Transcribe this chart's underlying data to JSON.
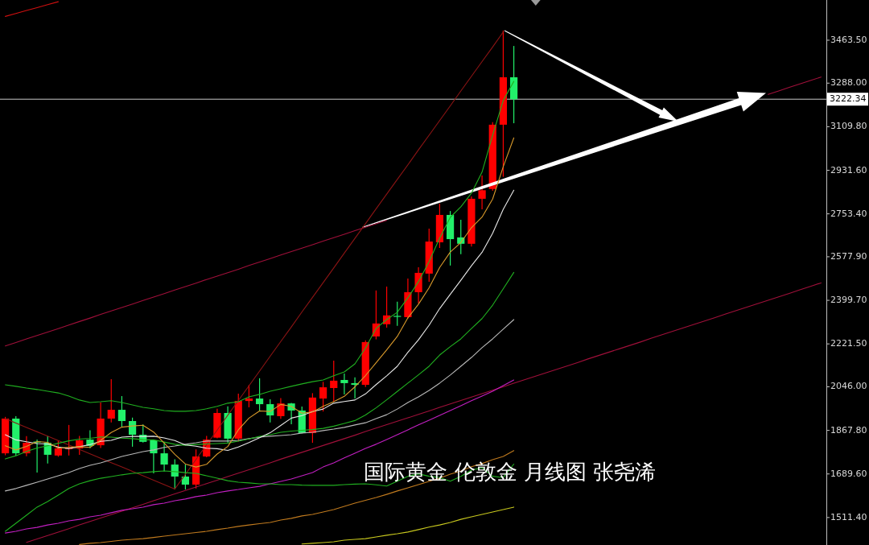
{
  "chart_data": {
    "type": "candlestick",
    "title": "国际黄金 伦敦金 月线图 张尧浠",
    "categories": [
      null,
      null,
      null,
      null,
      null,
      null,
      null,
      null,
      null,
      null,
      null,
      null,
      null,
      null,
      null,
      null,
      null,
      null,
      null,
      null,
      null,
      null,
      null,
      null,
      null,
      null,
      null,
      null,
      null,
      null,
      null,
      null,
      null,
      null,
      null,
      null,
      null,
      null,
      null,
      null,
      null,
      null,
      null,
      null,
      null,
      null,
      null,
      null,
      null,
      null,
      null,
      null,
      null,
      null,
      null,
      null,
      null,
      null,
      null,
      null,
      null,
      null,
      null,
      null,
      null,
      null,
      null,
      null,
      null,
      null,
      null,
      null,
      null,
      null,
      null,
      null,
      null,
      null
    ],
    "ohlc": [
      [
        1774,
        1923,
        1766,
        1916
      ],
      [
        1916,
        1926,
        1764,
        1774
      ],
      [
        1774,
        1844,
        1762,
        1817
      ],
      [
        1822,
        1830,
        1695,
        1820
      ],
      [
        1817,
        1844,
        1732,
        1768
      ],
      [
        1765,
        1826,
        1760,
        1794
      ],
      [
        1792,
        1890,
        1765,
        1795
      ],
      [
        1794,
        1845,
        1768,
        1827
      ],
      [
        1830,
        1868,
        1795,
        1804
      ],
      [
        1807,
        1982,
        1796,
        1916
      ],
      [
        1916,
        2077,
        1900,
        1952
      ],
      [
        1952,
        2008,
        1883,
        1906
      ],
      [
        1906,
        1920,
        1801,
        1850
      ],
      [
        1850,
        1892,
        1818,
        1821
      ],
      [
        1827,
        1828,
        1692,
        1774
      ],
      [
        1774,
        1820,
        1700,
        1728
      ],
      [
        1728,
        1750,
        1626,
        1679
      ],
      [
        1679,
        1728,
        1626,
        1646
      ],
      [
        1646,
        1790,
        1630,
        1761
      ],
      [
        1761,
        1845,
        1758,
        1830
      ],
      [
        1838,
        1956,
        1835,
        1939
      ],
      [
        1939,
        1966,
        1818,
        1834
      ],
      [
        1834,
        2018,
        1822,
        1988
      ],
      [
        1988,
        2054,
        1962,
        1998
      ],
      [
        1998,
        2081,
        1949,
        1975
      ],
      [
        1975,
        1995,
        1900,
        1929
      ],
      [
        1926,
        2000,
        1915,
        1978
      ],
      [
        1978,
        1980,
        1893,
        1949
      ],
      [
        1949,
        1965,
        1855,
        1857
      ],
      [
        1857,
        2020,
        1817,
        2002
      ],
      [
        1998,
        2066,
        1945,
        2044
      ],
      [
        2041,
        2153,
        1985,
        2071
      ],
      [
        2074,
        2100,
        2015,
        2061
      ],
      [
        2061,
        2085,
        1998,
        2054
      ],
      [
        2054,
        2236,
        2045,
        2229
      ],
      [
        2252,
        2440,
        2240,
        2305
      ],
      [
        2302,
        2456,
        2288,
        2338
      ],
      [
        2336,
        2394,
        2295,
        2334
      ],
      [
        2331,
        2489,
        2325,
        2433
      ],
      [
        2433,
        2535,
        2387,
        2512
      ],
      [
        2509,
        2693,
        2476,
        2640
      ],
      [
        2637,
        2795,
        2614,
        2749
      ],
      [
        2749,
        2765,
        2542,
        2650
      ],
      [
        2657,
        2729,
        2588,
        2631
      ],
      [
        2631,
        2825,
        2620,
        2815
      ],
      [
        2815,
        2910,
        2772,
        2850
      ],
      [
        2855,
        3128,
        2848,
        3118
      ],
      [
        3118,
        3503,
        2905,
        3312
      ],
      [
        3312,
        3440,
        3124,
        3222
      ],
      null,
      null,
      null,
      null,
      null,
      null,
      null,
      null,
      null,
      null,
      null,
      null,
      null,
      null,
      null,
      null,
      null,
      null,
      null,
      null,
      null,
      null,
      null,
      null,
      null,
      null,
      null,
      null,
      null
    ],
    "colors": [
      "#ff0000",
      "#22f06a",
      "#ff0000",
      "#22f06a",
      "#22f06a",
      "#ff0000",
      "#ff0000",
      "#ff0000",
      "#22f06a",
      "#ff0000",
      "#ff0000",
      "#22f06a",
      "#22f06a",
      "#22f06a",
      "#22f06a",
      "#22f06a",
      "#22f06a",
      "#22f06a",
      "#ff0000",
      "#ff0000",
      "#ff0000",
      "#22f06a",
      "#ff0000",
      "#ff0000",
      "#22f06a",
      "#22f06a",
      "#ff0000",
      "#22f06a",
      "#22f06a",
      "#ff0000",
      "#ff0000",
      "#ff0000",
      "#22f06a",
      "#22f06a",
      "#ff0000",
      "#ff0000",
      "#ff0000",
      "#22f06a",
      "#ff0000",
      "#ff0000",
      "#ff0000",
      "#ff0000",
      "#22f06a",
      "#22f06a",
      "#ff0000",
      "#ff0000",
      "#ff0000",
      "#ff0000",
      "#22f06a",
      null,
      null,
      null,
      null,
      null,
      null,
      null,
      null,
      null,
      null,
      null,
      null,
      null,
      null,
      null,
      null,
      null,
      null,
      null,
      null,
      null,
      null,
      null,
      null,
      null,
      null,
      null,
      null,
      null
    ],
    "ylim": [
      1399,
      3628
    ],
    "yticks": [
      {
        "value": 3463.5,
        "label": "3463.50"
      },
      {
        "value": 3288,
        "label": "3288.00"
      },
      {
        "value": 3109.8,
        "label": "3109.80"
      },
      {
        "value": 2931.6,
        "label": "2931.60"
      },
      {
        "value": 2753.4,
        "label": "2753.40"
      },
      {
        "value": 2577.9,
        "label": "2577.90"
      },
      {
        "value": 2399.7,
        "label": "2399.70"
      },
      {
        "value": 2221.5,
        "label": "2221.50"
      },
      {
        "value": 2046,
        "label": "2046.00"
      },
      {
        "value": 1867.8,
        "label": "1867.80"
      },
      {
        "value": 1689.6,
        "label": "1689.60"
      },
      {
        "value": 1511.4,
        "label": "1511.40"
      }
    ],
    "ref_lines": [
      {
        "axis": "y",
        "value": 3222.34,
        "label": "3222.34",
        "color": "#c8c8c8"
      }
    ],
    "series": [
      {
        "type": "line",
        "color": "#a0103a",
        "values": [
          2213,
          2227,
          2242,
          2256,
          2270,
          2284,
          2299,
          2313,
          2327,
          2342,
          2356,
          2370,
          2384,
          2399,
          2413,
          2427,
          2442,
          2456,
          2470,
          2485,
          2499,
          2513,
          2527,
          2542,
          2556,
          2570,
          2585,
          2599,
          2613,
          2627,
          2642,
          2656,
          2670,
          2685,
          2699,
          2713,
          2727,
          null,
          null,
          null,
          null,
          null,
          null,
          null,
          null,
          null,
          null,
          null,
          null,
          null,
          null,
          null,
          null,
          null,
          null,
          null,
          null,
          null,
          null,
          null,
          null,
          null,
          null,
          null,
          null,
          null,
          null,
          null,
          null,
          null,
          null,
          null,
          3242,
          3256,
          3271,
          3285,
          3299,
          3313
        ]
      },
      {
        "type": "line",
        "color": "#a0103a",
        "values": [
          null,
          null,
          1410,
          1424,
          1438,
          1452,
          1466,
          1481,
          1495,
          1509,
          1523,
          1537,
          1551,
          1565,
          1580,
          1594,
          1608,
          1622,
          1636,
          1650,
          1664,
          1679,
          1693,
          1707,
          1721,
          1735,
          1750,
          1764,
          1778,
          1792,
          1806,
          1820,
          1834,
          1848,
          1863,
          1877,
          1891,
          1905,
          1919,
          1933,
          1947,
          1962,
          1976,
          1990,
          2004,
          2018,
          2032,
          2046,
          2061,
          2075,
          2089,
          2103,
          2117,
          2131,
          2145,
          2160,
          2174,
          2188,
          2202,
          2216,
          2230,
          2245,
          2259,
          2273,
          2287,
          2301,
          2315,
          2329,
          2344,
          2358,
          2372,
          2386,
          2400,
          2414,
          2428,
          2443,
          2457,
          2471
        ]
      },
      {
        "type": "line",
        "color": "#d01010",
        "values": [
          3561,
          3573,
          3585,
          3597,
          3609,
          3621,
          null,
          null,
          null,
          null,
          null,
          null,
          null,
          null,
          null,
          null,
          null,
          null,
          null,
          null,
          null,
          null,
          null,
          null,
          null,
          null,
          null,
          null,
          null,
          null,
          null,
          null,
          null,
          null,
          null,
          null,
          null,
          null,
          null,
          null,
          null,
          null,
          null,
          null,
          null,
          null,
          null,
          null,
          null,
          null,
          null,
          null,
          null,
          null,
          null,
          null,
          null,
          null,
          null,
          null,
          null,
          null,
          null,
          null,
          null,
          null,
          null,
          null,
          null,
          null,
          null,
          null,
          null,
          null,
          null,
          null,
          null,
          null
        ]
      },
      {
        "type": "line",
        "color": "#8c1414",
        "values": [
          1916,
          1898,
          1880,
          1862,
          1844,
          1826,
          1808,
          1790,
          1772,
          1754,
          1736,
          1718,
          1700,
          1682,
          1664,
          1646,
          1628,
          1688,
          1749,
          1809,
          1869,
          1930,
          1990,
          2050,
          2110,
          2171,
          2231,
          2291,
          2352,
          2412,
          2472,
          2532,
          2593,
          2653,
          2713,
          2774,
          2834,
          2894,
          2954,
          3015,
          3075,
          3135,
          3195,
          3256,
          3316,
          3376,
          3436,
          3497,
          null,
          null,
          null,
          null,
          null,
          null,
          null,
          null,
          null,
          null,
          null,
          null,
          null,
          null,
          null,
          null,
          null,
          null,
          null,
          null,
          null,
          null,
          null,
          null,
          null,
          null,
          null,
          null,
          null,
          null
        ]
      },
      {
        "type": "line",
        "color": "#c8c81e",
        "values": [
          null,
          null,
          null,
          null,
          null,
          null,
          null,
          null,
          null,
          null,
          null,
          null,
          null,
          null,
          null,
          null,
          null,
          null,
          null,
          null,
          null,
          null,
          null,
          null,
          null,
          null,
          null,
          null,
          1403,
          1406,
          1409,
          1412,
          1419,
          1422,
          1425,
          1432,
          1439,
          1445,
          1452,
          1462,
          1472,
          1481,
          1491,
          1504,
          1514,
          1524,
          1534,
          1544,
          1554,
          null,
          null,
          null,
          null,
          null,
          null,
          null,
          null,
          null,
          null,
          null,
          null,
          null,
          null,
          null,
          null,
          null,
          null,
          null,
          null,
          null,
          null,
          null,
          null,
          null,
          null,
          null,
          null,
          null
        ]
      },
      {
        "type": "line",
        "color": "#c07a1e",
        "values": [
          null,
          null,
          null,
          null,
          null,
          null,
          null,
          1401,
          1406,
          1409,
          1414,
          1419,
          1422,
          1425,
          1430,
          1435,
          1440,
          1445,
          1450,
          1455,
          1462,
          1468,
          1475,
          1481,
          1486,
          1491,
          1501,
          1508,
          1518,
          1524,
          1534,
          1544,
          1557,
          1570,
          1582,
          1593,
          1606,
          1620,
          1633,
          1646,
          1659,
          1672,
          1689,
          1702,
          1719,
          1732,
          1748,
          1761,
          1785,
          null,
          null,
          null,
          null,
          null,
          null,
          null,
          null,
          null,
          null,
          null,
          null,
          null,
          null,
          null,
          null,
          null,
          null,
          null,
          null,
          null,
          null,
          null,
          null,
          null,
          null,
          null,
          null,
          null
        ]
      },
      {
        "type": "line",
        "color": "#c21fc2",
        "values": [
          1448,
          1455,
          1465,
          1471,
          1481,
          1488,
          1498,
          1504,
          1514,
          1521,
          1531,
          1541,
          1547,
          1554,
          1564,
          1570,
          1580,
          1587,
          1597,
          1603,
          1613,
          1620,
          1626,
          1633,
          1639,
          1649,
          1659,
          1669,
          1682,
          1695,
          1718,
          1735,
          1755,
          1774,
          1794,
          1811,
          1830,
          1850,
          1870,
          1890,
          1909,
          1929,
          1949,
          1969,
          1989,
          2008,
          2028,
          2051,
          2074,
          null,
          null,
          null,
          null,
          null,
          null,
          null,
          null,
          null,
          null,
          null,
          null,
          null,
          null,
          null,
          null,
          null,
          null,
          null,
          null,
          null,
          null,
          null,
          null,
          null,
          null,
          null,
          null,
          null
        ]
      },
      {
        "type": "line",
        "color": "#20b020",
        "values": [
          1455,
          1488,
          1521,
          1554,
          1577,
          1603,
          1630,
          1649,
          1662,
          1672,
          1679,
          1686,
          1692,
          1695,
          1699,
          1702,
          1699,
          1695,
          1692,
          1682,
          1672,
          1662,
          1656,
          1653,
          1649,
          1649,
          1646,
          1646,
          1644,
          1643,
          1643,
          1643,
          1646,
          1648,
          1649,
          1645,
          1640,
          1660,
          1680,
          1690,
          1680,
          1675,
          1660,
          1680,
          1705,
          1715,
          1680,
          1675,
          1730,
          null,
          null,
          null,
          null,
          null,
          null,
          null,
          null,
          null,
          null,
          null,
          null,
          null,
          null,
          null,
          null,
          null,
          null,
          null,
          null,
          null,
          null,
          null,
          null,
          null,
          null,
          null,
          null,
          null
        ]
      },
      {
        "type": "line",
        "color": "#b8b8b8",
        "values": [
          1620,
          1630,
          1643,
          1656,
          1669,
          1682,
          1695,
          1712,
          1725,
          1735,
          1748,
          1761,
          1771,
          1781,
          1788,
          1798,
          1804,
          1811,
          1817,
          1824,
          1824,
          1824,
          1827,
          1834,
          1840,
          1844,
          1847,
          1850,
          1857,
          1860,
          1867,
          1873,
          1880,
          1890,
          1899,
          1916,
          1932,
          1955,
          1982,
          2005,
          2031,
          2061,
          2094,
          2130,
          2166,
          2206,
          2242,
          2282,
          2321,
          null,
          null,
          null,
          null,
          null,
          null,
          null,
          null,
          null,
          null,
          null,
          null,
          null,
          null,
          null,
          null,
          null,
          null,
          null,
          null,
          null,
          null,
          null,
          null,
          null,
          null,
          null,
          null,
          null
        ]
      },
      {
        "type": "line",
        "color": "#20b020",
        "values": [
          1751,
          1764,
          1782,
          1796,
          1805,
          1815,
          1825,
          1832,
          1835,
          1841,
          1840,
          1836,
          1834,
          1830,
          1829,
          1820,
          1811,
          1807,
          1810,
          1812,
          1814,
          1816,
          1824,
          1833,
          1843,
          1850,
          1860,
          1865,
          1868,
          1871,
          1876,
          1885,
          1896,
          1908,
          1931,
          1960,
          1993,
          2027,
          2061,
          2095,
          2130,
          2176,
          2210,
          2242,
          2284,
          2325,
          2380,
          2447,
          2514,
          null,
          null,
          null,
          null,
          null,
          null,
          null,
          null,
          null,
          null,
          null,
          null,
          null,
          null,
          null,
          null,
          null,
          null,
          null,
          null,
          null,
          null,
          null,
          null,
          null,
          null,
          null,
          null,
          null
        ]
      },
      {
        "type": "line",
        "color": "#20b020",
        "values": [
          2054,
          2048,
          2041,
          2035,
          2028,
          2021,
          2008,
          1992,
          1982,
          1985,
          1989,
          1982,
          1972,
          1962,
          1956,
          1949,
          1946,
          1946,
          1949,
          1956,
          1966,
          1979,
          1985,
          2005,
          2015,
          2028,
          2038,
          2048,
          2058,
          2067,
          2074,
          2091,
          2107,
          2140,
          2205,
          2285,
          2321,
          2351,
          2410,
          2476,
          2558,
          2654,
          2739,
          2782,
          2838,
          2924,
          3075,
          3217,
          3295,
          null,
          null,
          null,
          null,
          null,
          null,
          null,
          null,
          null,
          null,
          null,
          null,
          null,
          null,
          null,
          null,
          null,
          null,
          null,
          null,
          null,
          null,
          null,
          null,
          null,
          null,
          null,
          null,
          null
        ]
      },
      {
        "type": "line",
        "color": "#e8e8e8",
        "values": [
          1850,
          1829,
          1821,
          1814,
          1812,
          1800,
          1793,
          1801,
          1810,
          1823,
          1827,
          1840,
          1843,
          1843,
          1844,
          1837,
          1826,
          1808,
          1803,
          1795,
          1793,
          1786,
          1800,
          1818,
          1838,
          1858,
          1888,
          1918,
          1928,
          1945,
          1955,
          1979,
          1986,
          1992,
          2017,
          2055,
          2091,
          2130,
          2187,
          2238,
          2298,
          2366,
          2424,
          2482,
          2541,
          2596,
          2674,
          2772,
          2850,
          null,
          null,
          null,
          null,
          null,
          null,
          null,
          null,
          null,
          null,
          null,
          null,
          null,
          null,
          null,
          null,
          null,
          null,
          null,
          null,
          null,
          null,
          null,
          null,
          null,
          null,
          null,
          null,
          null
        ]
      },
      {
        "type": "line",
        "color": "#d99a2b",
        "values": [
          1805,
          1788,
          1802,
          1822,
          1819,
          1795,
          1799,
          1801,
          1798,
          1827,
          1859,
          1881,
          1886,
          1889,
          1861,
          1816,
          1770,
          1730,
          1718,
          1729,
          1771,
          1802,
          1870,
          1918,
          1947,
          1945,
          1974,
          1966,
          1938,
          1943,
          1966,
          1985,
          2007,
          2046,
          2092,
          2144,
          2197,
          2252,
          2328,
          2384,
          2451,
          2534,
          2597,
          2636,
          2697,
          2740,
          2814,
          2946,
          3064,
          null,
          null,
          null,
          null,
          null,
          null,
          null,
          null,
          null,
          null,
          null,
          null,
          null,
          null,
          null,
          null,
          null,
          null,
          null,
          null,
          null,
          null,
          null,
          null,
          null,
          null,
          null,
          null,
          null
        ]
      }
    ]
  }
}
